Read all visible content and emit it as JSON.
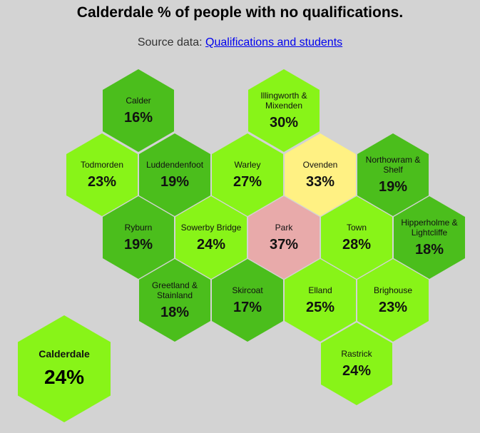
{
  "header": {
    "title": "Calderdale % of people with no qualifications.",
    "source_label": "Source data:",
    "source_link": "Qualifications and students"
  },
  "summary": {
    "name": "Calderdale",
    "value": "24%",
    "color": "#88f418"
  },
  "hexes": [
    {
      "name": "Calder",
      "value": "16%",
      "color": "#4bbe1c"
    },
    {
      "name": "Illingworth & Mixenden",
      "value": "30%",
      "color": "#88f418"
    },
    {
      "name": "Todmorden",
      "value": "23%",
      "color": "#88f418"
    },
    {
      "name": "Luddendenfoot",
      "value": "19%",
      "color": "#4bbe1c"
    },
    {
      "name": "Warley",
      "value": "27%",
      "color": "#88f418"
    },
    {
      "name": "Ovenden",
      "value": "33%",
      "color": "#fff183"
    },
    {
      "name": "Northowram & Shelf",
      "value": "19%",
      "color": "#4bbe1c"
    },
    {
      "name": "Ryburn",
      "value": "19%",
      "color": "#4bbe1c"
    },
    {
      "name": "Sowerby Bridge",
      "value": "24%",
      "color": "#88f418"
    },
    {
      "name": "Park",
      "value": "37%",
      "color": "#e8aaaa"
    },
    {
      "name": "Town",
      "value": "28%",
      "color": "#88f418"
    },
    {
      "name": "Hipperholme & Lightcliffe",
      "value": "18%",
      "color": "#4bbe1c"
    },
    {
      "name": "Greetland & Stainland",
      "value": "18%",
      "color": "#4bbe1c"
    },
    {
      "name": "Skircoat",
      "value": "17%",
      "color": "#4bbe1c"
    },
    {
      "name": "Elland",
      "value": "25%",
      "color": "#88f418"
    },
    {
      "name": "Brighouse",
      "value": "23%",
      "color": "#88f418"
    },
    {
      "name": "Rastrick",
      "value": "24%",
      "color": "#88f418"
    }
  ]
}
